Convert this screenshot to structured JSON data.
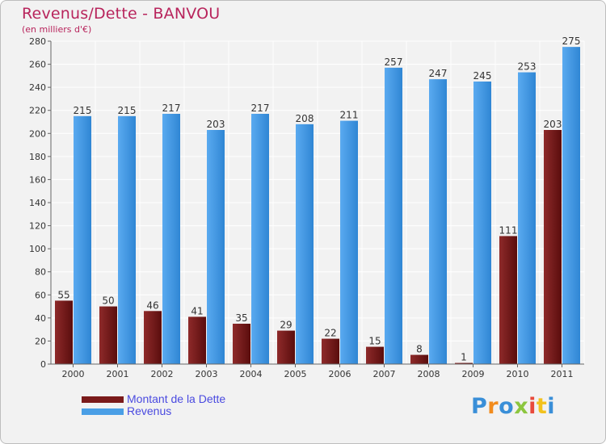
{
  "title": "Revenus/Dette - BANVOU",
  "subtitle": "(en milliers d'€)",
  "logo": {
    "text": "Proxiti",
    "letter_colors": [
      "#3a8fd8",
      "#f28c1e",
      "#3a8fd8",
      "#8cc63f",
      "#e84a3c",
      "#f2c21e",
      "#3a8fd8"
    ]
  },
  "colors": {
    "dette": "#7a1a1a",
    "revenus": "#4a9fe6",
    "axis_text": "#333333",
    "grid": "#ffffff",
    "background": "#f2f2f2"
  },
  "chart_data": {
    "type": "bar",
    "title": "Revenus/Dette - BANVOU",
    "subtitle": "(en milliers d'€)",
    "categories": [
      "2000",
      "2001",
      "2002",
      "2003",
      "2004",
      "2005",
      "2006",
      "2007",
      "2008",
      "2009",
      "2010",
      "2011"
    ],
    "series": [
      {
        "name": "Montant de la Dette",
        "values": [
          55,
          50,
          46,
          41,
          35,
          29,
          22,
          15,
          8,
          1,
          111,
          203
        ]
      },
      {
        "name": "Revenus",
        "values": [
          215,
          215,
          217,
          203,
          217,
          208,
          211,
          257,
          247,
          245,
          253,
          275
        ]
      }
    ],
    "ylim": [
      0,
      280
    ],
    "yticks": [
      0,
      20,
      40,
      60,
      80,
      100,
      120,
      140,
      160,
      180,
      200,
      220,
      240,
      260,
      280
    ],
    "grid": true,
    "legend_position": "bottom-left"
  }
}
